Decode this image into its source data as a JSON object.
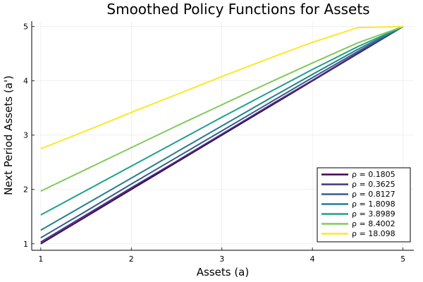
{
  "chart_data": {
    "type": "line",
    "title": "Smoothed Policy Functions for Assets",
    "xlabel": "Assets (a)",
    "ylabel": "Next Period Assets (a')",
    "xlim": [
      0.9,
      5.12
    ],
    "ylim": [
      0.88,
      5.1
    ],
    "xticks": [
      1,
      2,
      3,
      4,
      5
    ],
    "yticks": [
      1,
      2,
      3,
      4,
      5
    ],
    "grid": true,
    "legend_position": "bottom-right",
    "x": [
      1.0,
      1.5,
      2.0,
      2.5,
      3.0,
      3.5,
      4.0,
      4.5,
      5.0
    ],
    "series": [
      {
        "name": "ρ = 0.1805",
        "color": "#440154",
        "values": [
          1.0,
          1.5,
          2.0,
          2.5,
          3.0,
          3.5,
          4.0,
          4.5,
          5.0
        ]
      },
      {
        "name": "ρ = 0.3625",
        "color": "#46327e",
        "values": [
          1.03,
          1.53,
          2.03,
          2.52,
          3.02,
          3.52,
          4.01,
          4.51,
          5.0
        ]
      },
      {
        "name": "ρ = 0.8127",
        "color": "#365c8d",
        "values": [
          1.11,
          1.6,
          2.1,
          2.59,
          3.08,
          3.57,
          4.06,
          4.54,
          5.0
        ]
      },
      {
        "name": "ρ = 1.8098",
        "color": "#277f8e",
        "values": [
          1.25,
          1.73,
          2.21,
          2.69,
          3.17,
          3.65,
          4.12,
          4.58,
          5.0
        ]
      },
      {
        "name": "ρ = 3.8989",
        "color": "#1fa187",
        "values": [
          1.53,
          1.98,
          2.43,
          2.88,
          3.33,
          3.77,
          4.21,
          4.63,
          5.0
        ]
      },
      {
        "name": "ρ = 8.4002",
        "color": "#82c95c",
        "values": [
          1.97,
          2.37,
          2.77,
          3.17,
          3.56,
          3.95,
          4.33,
          4.7,
          5.0
        ]
      },
      {
        "name": "ρ = 18.098",
        "color": "#fde725",
        "values": [
          2.75,
          3.08,
          3.42,
          3.75,
          4.08,
          4.4,
          4.71,
          4.98,
          5.0
        ]
      }
    ]
  }
}
